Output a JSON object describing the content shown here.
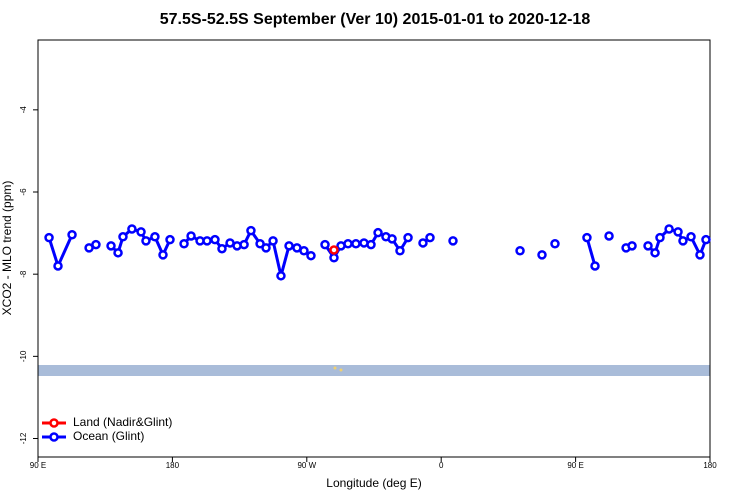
{
  "chart_data": {
    "type": "line",
    "title": "57.5S-52.5S September (Ver 10)   2015-01-01 to 2020-12-18",
    "x_label": "Longitude (deg E)",
    "y_label": "XCO2 - MLO trend (ppm)",
    "xlim": [
      90,
      540
    ],
    "xticks": [
      {
        "value": 90,
        "label": "90 E"
      },
      180,
      {
        "value": 270,
        "label": "90 W"
      },
      {
        "value": 360,
        "label": "0"
      },
      {
        "value": 450,
        "label": "90 E"
      },
      {
        "value": 540,
        "label": "180"
      }
    ],
    "ylim": [
      -12.45,
      -2.3
    ],
    "yticks": [
      -12,
      -10,
      -8,
      -6,
      -4
    ],
    "legend": "bottom-left",
    "series": [
      {
        "name": "Land (Nadir&Glint)",
        "color": "#ff0000",
        "x": [
          288.2
        ],
        "values": [
          -7.41
        ]
      },
      {
        "name": "Ocean (Glint)",
        "color": "#0000ff",
        "x": [
          97.4,
          103.4,
          112.8,
          null,
          124.2,
          128.8,
          null,
          138.9,
          143.6,
          146.9,
          152.9,
          159.0,
          162.3,
          168.3,
          173.7,
          178.4,
          null,
          187.8,
          192.5,
          198.5,
          203.2,
          208.5,
          213.2,
          218.6,
          223.3,
          228.0,
          232.6,
          238.7,
          242.7,
          247.4,
          252.7,
          258.1,
          263.4,
          268.1,
          272.8,
          null,
          282.2,
          288.2,
          292.9,
          297.6,
          302.9,
          308.3,
          313.0,
          317.7,
          323.0,
          327.1,
          332.4,
          337.8,
          null,
          347.8,
          352.5,
          null,
          367.9,
          null,
          412.8,
          null,
          427.5,
          null,
          436.2,
          null,
          457.6,
          463.0,
          null,
          472.4,
          null,
          483.8,
          487.8,
          null,
          498.5,
          503.2,
          506.5,
          512.6,
          518.6,
          521.9,
          527.3,
          533.3,
          537.3
        ],
        "values": [
          -7.11,
          -7.8,
          -7.04,
          null,
          -7.36,
          -7.28,
          null,
          -7.31,
          -7.48,
          -7.09,
          -6.9,
          -6.97,
          -7.19,
          -7.09,
          -7.53,
          -7.16,
          null,
          -7.26,
          -7.07,
          -7.19,
          -7.19,
          -7.16,
          -7.38,
          -7.24,
          -7.31,
          -7.28,
          -6.94,
          -7.26,
          -7.36,
          -7.19,
          -8.04,
          -7.31,
          -7.36,
          -7.43,
          -7.55,
          null,
          -7.28,
          -7.6,
          -7.31,
          -7.26,
          -7.26,
          -7.24,
          -7.28,
          -6.99,
          -7.09,
          -7.14,
          -7.43,
          -7.11,
          null,
          -7.24,
          -7.11,
          null,
          -7.19,
          null,
          -7.43,
          null,
          -7.53,
          null,
          -7.26,
          null,
          -7.11,
          -7.8,
          null,
          -7.07,
          null,
          -7.36,
          -7.31,
          null,
          -7.31,
          -7.48,
          -7.11,
          -6.9,
          -6.97,
          -7.19,
          -7.09,
          -7.53,
          -7.16
        ]
      }
    ]
  }
}
